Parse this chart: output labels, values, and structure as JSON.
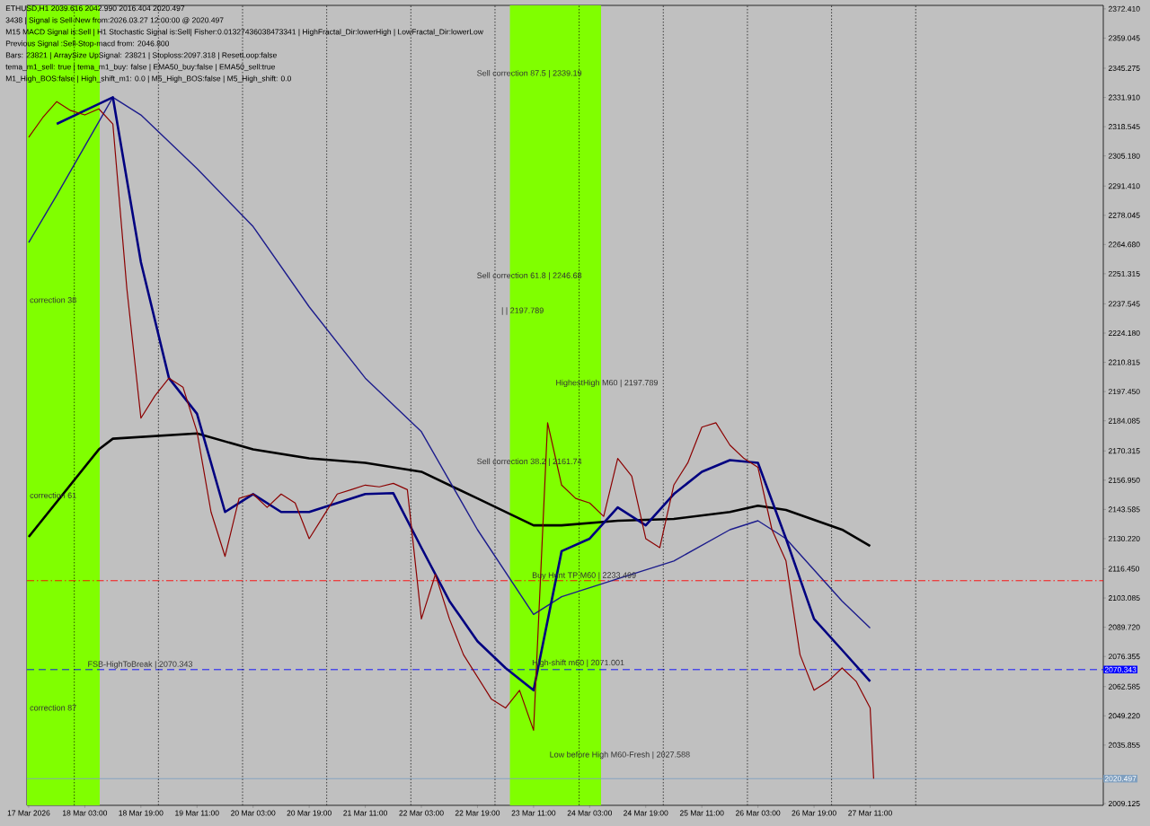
{
  "chart_data": {
    "type": "line",
    "annotations": [
      "ETHUSD,H1  2039.616 2042.990 2016.404 2020.497",
      "3438 | Signal is Sell-New from:2026.03.27 12:00:00 @ 2020.497",
      "M15 MACD Signal is:Sell | H1 Stochastic Signal is:Sell| Fisher:0.01327436038473341 | HighFractal_Dir:lowerHigh | LowFractal_Dir:lowerLow",
      "Previous Signal :Sell-Stop-macd from: 2046.800",
      "Bars: 23821 | ArraySize UpSignal: 23821 | Stoploss:2097.318 | ResetLoop:false",
      "tema_m1_sell: true | tema_m1_buy: false | EMA50_buy:false | EMA50_sell:true",
      "M1_High_BOS:false | High_shift_m1: 0.0 | M5_High_BOS:false | M5_High_shift: 0.0",
      "correction 38",
      {
        "text": "correction 61",
        "x": "2026-03-17T11:00",
        "y": 2148.2
      },
      "correction 87",
      {
        "text": "FSB-HighToBreak | 2070.343",
        "x": "2026-03-18T03:30",
        "y": 2070.343
      },
      "Sell correction 87.5 | 2339.19",
      "Sell correction 61.8 | 2246.68",
      "| | 2197.789",
      "Sell correction 38.2 | 2161.74",
      "HighestHigh   M60 | 2197.789",
      {
        "text": "Buy Hunt TP M60 | 2233.499",
        "x": "2026-03-23T10:15",
        "y": 2111.0
      },
      {
        "text": "High-shift m60 | 2071.001",
        "x": "2026-03-23T10:15",
        "y": 2071.001
      },
      "Low before High   M60-Fresh | 2027.588"
    ],
    "xlim": [
      "2026-03-17T10:30",
      "2026-03-30T05:30"
    ],
    "ylim": [
      2008.3,
      2374.0
    ],
    "xticks": [
      {
        "value": "2026-03-17T11:00",
        "label": "17 Mar 2026"
      },
      {
        "value": "2026-03-18T03:00",
        "label": "18 Mar 03:00"
      },
      {
        "value": "2026-03-18T19:00",
        "label": "18 Mar 19:00"
      },
      {
        "value": "2026-03-19T11:00",
        "label": "19 Mar 11:00"
      },
      {
        "value": "2026-03-20T03:00",
        "label": "20 Mar 03:00"
      },
      {
        "value": "2026-03-20T19:00",
        "label": "20 Mar 19:00"
      },
      {
        "value": "2026-03-21T11:00",
        "label": "21 Mar 11:00"
      },
      {
        "value": "2026-03-22T03:00",
        "label": "22 Mar 03:00"
      },
      {
        "value": "2026-03-22T19:00",
        "label": "22 Mar 19:00"
      },
      {
        "value": "2026-03-23T11:00",
        "label": "23 Mar 11:00"
      },
      {
        "value": "2026-03-24T03:00",
        "label": "24 Mar 03:00"
      },
      {
        "value": "2026-03-24T19:00",
        "label": "24 Mar 19:00"
      },
      {
        "value": "2026-03-25T11:00",
        "label": "25 Mar 11:00"
      },
      {
        "value": "2026-03-26T03:00",
        "label": "26 Mar 03:00"
      },
      {
        "value": "2026-03-26T19:00",
        "label": "26 Mar 19:00"
      },
      {
        "value": "2026-03-27T11:00",
        "label": "27 Mar 11:00"
      }
    ],
    "yticks": [
      {
        "value": 2372.41,
        "label": "2372.410"
      },
      {
        "value": 2359.045,
        "label": "2359.045"
      },
      {
        "value": 2345.275,
        "label": "2345.275"
      },
      {
        "value": 2331.91,
        "label": "2331.910"
      },
      {
        "value": 2318.545,
        "label": "2318.545"
      },
      {
        "value": 2305.18,
        "label": "2305.180"
      },
      {
        "value": 2291.41,
        "label": "2291.410"
      },
      {
        "value": 2278.045,
        "label": "2278.045"
      },
      {
        "value": 2264.68,
        "label": "2264.680"
      },
      {
        "value": 2251.315,
        "label": "2251.315"
      },
      {
        "value": 2237.545,
        "label": "2237.545"
      },
      {
        "value": 2224.18,
        "label": "2224.180"
      },
      {
        "value": 2210.815,
        "label": "2210.815"
      },
      {
        "value": 2197.45,
        "label": "2197.450"
      },
      {
        "value": 2184.085,
        "label": "2184.085"
      },
      {
        "value": 2170.315,
        "label": "2170.315"
      },
      {
        "value": 2156.95,
        "label": "2156.950"
      },
      {
        "value": 2143.585,
        "label": "2143.585"
      },
      {
        "value": 2130.22,
        "label": "2130.220"
      },
      {
        "value": 2116.45,
        "label": "2116.450"
      },
      {
        "value": 2103.085,
        "label": "2103.085"
      },
      {
        "value": 2089.72,
        "label": "2089.720"
      },
      {
        "value": 2076.355,
        "label": "2076.355"
      },
      {
        "value": 2062.585,
        "label": "2062.585"
      },
      {
        "value": 2049.22,
        "label": "2049.220"
      },
      {
        "value": 2035.855,
        "label": "2035.855"
      },
      {
        "value": 2009.125,
        "label": "2009.125"
      }
    ],
    "bands": [
      {
        "axis": "x",
        "from": "2026-03-17T10:30",
        "to": "2026-03-18T07:15",
        "color": "#80ff00"
      },
      {
        "axis": "x",
        "from": "2026-03-23T04:15",
        "to": "2026-03-24T06:15",
        "color": "#80ff00"
      }
    ],
    "ref_lines": [
      {
        "axis": "y",
        "value": 2070.343,
        "label": "2070.343",
        "color": "#0000ff",
        "line_style": "dashed"
      },
      {
        "axis": "y",
        "value": 2020.497,
        "label": "2020.497",
        "color": "#7f9fbf",
        "line_style": "solid"
      },
      {
        "axis": "y",
        "value": 2111.0,
        "color": "#ff0000",
        "line_style": "dashdot"
      },
      {
        "axis": "x",
        "value": "2026-03-18T00:00",
        "color": "#000000",
        "line_style": "dotted"
      },
      {
        "axis": "x",
        "value": "2026-03-19T00:00",
        "color": "#000000",
        "line_style": "dotted"
      },
      {
        "axis": "x",
        "value": "2026-03-20T00:00",
        "color": "#000000",
        "line_style": "dotted"
      },
      {
        "axis": "x",
        "value": "2026-03-21T00:00",
        "color": "#000000",
        "line_style": "dotted"
      },
      {
        "axis": "x",
        "value": "2026-03-22T00:00",
        "color": "#000000",
        "line_style": "dotted"
      },
      {
        "axis": "x",
        "value": "2026-03-23T00:00",
        "color": "#000000",
        "line_style": "dotted"
      },
      {
        "axis": "x",
        "value": "2026-03-24T00:00",
        "color": "#000000",
        "line_style": "dotted"
      },
      {
        "axis": "x",
        "value": "2026-03-25T00:00",
        "color": "#000000",
        "line_style": "dotted"
      },
      {
        "axis": "x",
        "value": "2026-03-26T00:00",
        "color": "#000000",
        "line_style": "dotted"
      },
      {
        "axis": "x",
        "value": "2026-03-27T00:00",
        "color": "#000000",
        "line_style": "dotted"
      },
      {
        "axis": "x",
        "value": "2026-03-28T00:00",
        "color": "#000000",
        "line_style": "dotted"
      }
    ],
    "series": [
      {
        "color": "#8b0000",
        "x": [
          "2026-03-17T11:00",
          "2026-03-17T15:00",
          "2026-03-17T19:00",
          "2026-03-17T23:00",
          "2026-03-18T03:00",
          "2026-03-18T07:00",
          "2026-03-18T11:00",
          "2026-03-18T15:00",
          "2026-03-18T19:00",
          "2026-03-18T23:00",
          "2026-03-19T03:00",
          "2026-03-19T07:00",
          "2026-03-19T11:00",
          "2026-03-19T15:00",
          "2026-03-19T19:00",
          "2026-03-19T23:00",
          "2026-03-20T03:00",
          "2026-03-20T07:00",
          "2026-03-20T11:00",
          "2026-03-20T15:00",
          "2026-03-20T19:00",
          "2026-03-20T23:00",
          "2026-03-21T03:00",
          "2026-03-21T07:00",
          "2026-03-21T11:00",
          "2026-03-21T15:00",
          "2026-03-21T19:00",
          "2026-03-21T23:00",
          "2026-03-22T03:00",
          "2026-03-22T07:00",
          "2026-03-22T11:00",
          "2026-03-22T15:00",
          "2026-03-22T19:00",
          "2026-03-22T23:00",
          "2026-03-23T03:00",
          "2026-03-23T07:00",
          "2026-03-23T11:00",
          "2026-03-23T15:00",
          "2026-03-23T19:00",
          "2026-03-23T23:00",
          "2026-03-24T03:00",
          "2026-03-24T07:00",
          "2026-03-24T11:00",
          "2026-03-24T15:00",
          "2026-03-24T19:00",
          "2026-03-24T23:00",
          "2026-03-25T03:00",
          "2026-03-25T07:00",
          "2026-03-25T11:00",
          "2026-03-25T15:00",
          "2026-03-25T19:00",
          "2026-03-25T23:00",
          "2026-03-26T03:00",
          "2026-03-26T07:00",
          "2026-03-26T11:00",
          "2026-03-26T15:00",
          "2026-03-26T19:00",
          "2026-03-26T23:00",
          "2026-03-27T03:00",
          "2026-03-27T07:00",
          "2026-03-27T11:00",
          "2026-03-27T12:00"
        ],
        "values": [
          2313.7,
          2322.7,
          2330.0,
          2325.9,
          2323.9,
          2326.7,
          2319.8,
          2244.4,
          2185.3,
          2195.5,
          2203.6,
          2199.5,
          2179.1,
          2142.4,
          2122.1,
          2148.6,
          2150.6,
          2144.5,
          2150.6,
          2146.5,
          2130.2,
          2140.4,
          2150.6,
          2152.6,
          2154.7,
          2153.9,
          2155.5,
          2152.6,
          2093.5,
          2113.9,
          2093.5,
          2077.2,
          2067.0,
          2056.8,
          2052.8,
          2060.9,
          2042.6,
          2183.2,
          2154.7,
          2148.6,
          2146.5,
          2140.4,
          2166.9,
          2158.8,
          2130.2,
          2126.1,
          2154.7,
          2164.9,
          2181.2,
          2183.2,
          2173.0,
          2166.9,
          2162.8,
          2134.3,
          2120.0,
          2077.2,
          2060.9,
          2065.0,
          2071.1,
          2065.0,
          2052.8,
          2020.497
        ]
      },
      {
        "color": "#000080",
        "x": [
          "2026-03-17T19:00",
          "2026-03-18T03:00",
          "2026-03-18T11:00",
          "2026-03-18T19:00",
          "2026-03-19T03:00",
          "2026-03-19T11:00",
          "2026-03-19T19:00",
          "2026-03-20T03:00",
          "2026-03-20T11:00",
          "2026-03-20T19:00",
          "2026-03-21T03:00",
          "2026-03-21T11:00",
          "2026-03-21T19:00",
          "2026-03-22T03:00",
          "2026-03-22T11:00",
          "2026-03-22T19:00",
          "2026-03-23T03:00",
          "2026-03-23T11:00",
          "2026-03-23T19:00",
          "2026-03-24T03:00",
          "2026-03-24T11:00",
          "2026-03-24T19:00",
          "2026-03-25T03:00",
          "2026-03-25T11:00",
          "2026-03-25T19:00",
          "2026-03-26T03:00",
          "2026-03-26T11:00",
          "2026-03-26T19:00",
          "2026-03-27T03:00",
          "2026-03-27T11:00"
        ],
        "values": [
          2319.8,
          2325.9,
          2332.0,
          2256.6,
          2203.6,
          2187.3,
          2142.4,
          2150.6,
          2142.4,
          2142.4,
          2146.5,
          2150.6,
          2151.0,
          2126.1,
          2101.7,
          2083.3,
          2071.1,
          2060.9,
          2124.5,
          2130.2,
          2144.5,
          2136.3,
          2150.6,
          2160.8,
          2166.1,
          2164.9,
          2130.2,
          2093.5,
          2079.3,
          2065.0
        ]
      },
      {
        "color": "#1c1c8c",
        "x": [
          "2026-03-17T11:00",
          "2026-03-17T19:00",
          "2026-03-18T03:00",
          "2026-03-18T11:00",
          "2026-03-18T19:00",
          "2026-03-19T11:00",
          "2026-03-20T03:00",
          "2026-03-20T19:00",
          "2026-03-21T11:00",
          "2026-03-22T03:00",
          "2026-03-22T19:00",
          "2026-03-23T11:00",
          "2026-03-23T19:00",
          "2026-03-24T11:00",
          "2026-03-25T03:00",
          "2026-03-25T19:00",
          "2026-03-26T03:00",
          "2026-03-26T11:00",
          "2026-03-27T03:00",
          "2026-03-27T11:00"
        ],
        "values": [
          2265.6,
          2287.2,
          2309.6,
          2332.0,
          2323.9,
          2299.4,
          2272.9,
          2236.2,
          2203.6,
          2179.1,
          2134.3,
          2095.6,
          2103.7,
          2111.9,
          2120.0,
          2134.3,
          2138.4,
          2130.2,
          2101.7,
          2089.4
        ]
      },
      {
        "color": "#000000",
        "x": [
          "2026-03-17T11:00",
          "2026-03-18T07:00",
          "2026-03-18T11:00",
          "2026-03-19T11:00",
          "2026-03-20T03:00",
          "2026-03-20T19:00",
          "2026-03-21T11:00",
          "2026-03-22T03:00",
          "2026-03-22T19:00",
          "2026-03-23T11:00",
          "2026-03-23T19:00",
          "2026-03-24T11:00",
          "2026-03-25T03:00",
          "2026-03-25T19:00",
          "2026-03-26T03:00",
          "2026-03-26T11:00",
          "2026-03-27T03:00",
          "2026-03-27T11:00"
        ],
        "values": [
          2131.0,
          2171.0,
          2175.9,
          2178.3,
          2171.0,
          2166.9,
          2164.9,
          2160.8,
          2148.6,
          2136.3,
          2136.3,
          2138.4,
          2139.2,
          2142.4,
          2145.3,
          2143.3,
          2134.3,
          2126.9
        ]
      }
    ]
  }
}
